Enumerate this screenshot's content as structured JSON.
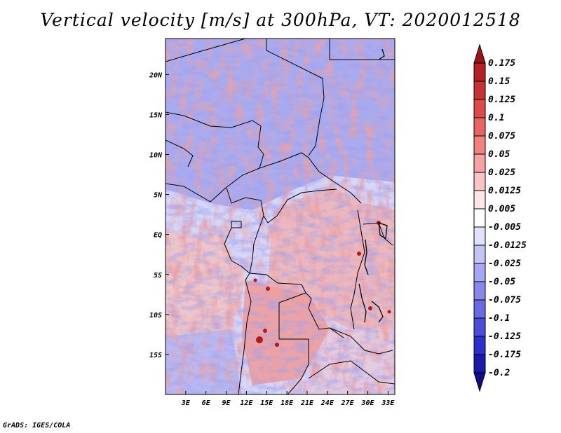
{
  "title": "Vertical velocity [m/s] at 300hPa, VT: 2020012518",
  "credit": "GrADS: IGES/COLA",
  "map": {
    "variable": "Vertical velocity",
    "units": "m/s",
    "level": "300hPa",
    "valid_time": "2020012518",
    "lat_labels": [
      "20N",
      "15N",
      "10N",
      "5N",
      "EQ",
      "5S",
      "10S",
      "15S"
    ],
    "lon_labels": [
      "3E",
      "6E",
      "9E",
      "12E",
      "15E",
      "18E",
      "21E",
      "24E",
      "27E",
      "30E",
      "33E"
    ],
    "lat_values": [
      20,
      15,
      10,
      5,
      0,
      -5,
      -10,
      -15
    ],
    "lon_values": [
      3,
      6,
      9,
      12,
      15,
      18,
      21,
      24,
      27,
      30,
      33
    ],
    "lat_range": [
      -20,
      24.5
    ],
    "lon_range": [
      0,
      34
    ]
  },
  "colorbar": {
    "labels": [
      "0.175",
      "0.15",
      "0.125",
      "0.1",
      "0.075",
      "0.05",
      "0.025",
      "0.0125",
      "0.005",
      "-0.005",
      "-0.0125",
      "-0.025",
      "-0.05",
      "-0.075",
      "-0.1",
      "-0.125",
      "-0.175",
      "-0.2"
    ],
    "colors": [
      "#a01216",
      "#b42024",
      "#c83236",
      "#dc4a4a",
      "#e86464",
      "#f08282",
      "#f5a2a2",
      "#f9c4c4",
      "#fde6e6",
      "#ffffff",
      "#e2e2fb",
      "#c4c4f7",
      "#a6a6f2",
      "#8888ec",
      "#6a6ae4",
      "#4c4cda",
      "#2e2ece",
      "#1a1aaa",
      "#0e0e8a"
    ]
  }
}
